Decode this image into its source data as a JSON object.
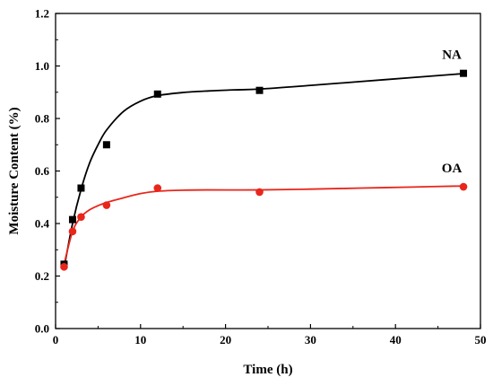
{
  "chart_data": {
    "type": "scatter",
    "xlabel": "Time (h)",
    "ylabel": "Moisture Content (%)",
    "xlim": [
      0,
      50
    ],
    "ylim": [
      0.0,
      1.2
    ],
    "x_ticks": [
      "0",
      "10",
      "20",
      "30",
      "40",
      "50"
    ],
    "y_ticks": [
      "0.0",
      "0.2",
      "0.4",
      "0.6",
      "0.8",
      "1.0",
      "1.2"
    ],
    "grid": false,
    "series": [
      {
        "name": "NA",
        "marker": "square",
        "color": "#000000",
        "x": [
          1,
          2,
          3,
          6,
          12,
          24,
          48
        ],
        "y": [
          0.245,
          0.415,
          0.535,
          0.7,
          0.893,
          0.907,
          0.972
        ],
        "fit_x": [
          1,
          2,
          3,
          4,
          5,
          6,
          8,
          10,
          12,
          15,
          18,
          21,
          24,
          30,
          36,
          42,
          48
        ],
        "fit_y": [
          0.23,
          0.4,
          0.53,
          0.63,
          0.7,
          0.756,
          0.827,
          0.866,
          0.887,
          0.899,
          0.905,
          0.909,
          0.912,
          0.926,
          0.941,
          0.956,
          0.971
        ]
      },
      {
        "name": "OA",
        "marker": "circle",
        "color": "#e8261c",
        "x": [
          1,
          2,
          3,
          6,
          12,
          24,
          48
        ],
        "y": [
          0.235,
          0.37,
          0.425,
          0.47,
          0.535,
          0.52,
          0.54
        ],
        "fit_x": [
          1,
          2,
          3,
          4,
          5,
          6,
          8,
          10,
          12,
          15,
          18,
          24,
          30,
          36,
          42,
          48
        ],
        "fit_y": [
          0.245,
          0.37,
          0.425,
          0.452,
          0.468,
          0.48,
          0.498,
          0.514,
          0.523,
          0.527,
          0.528,
          0.528,
          0.531,
          0.535,
          0.539,
          0.543
        ]
      }
    ]
  }
}
